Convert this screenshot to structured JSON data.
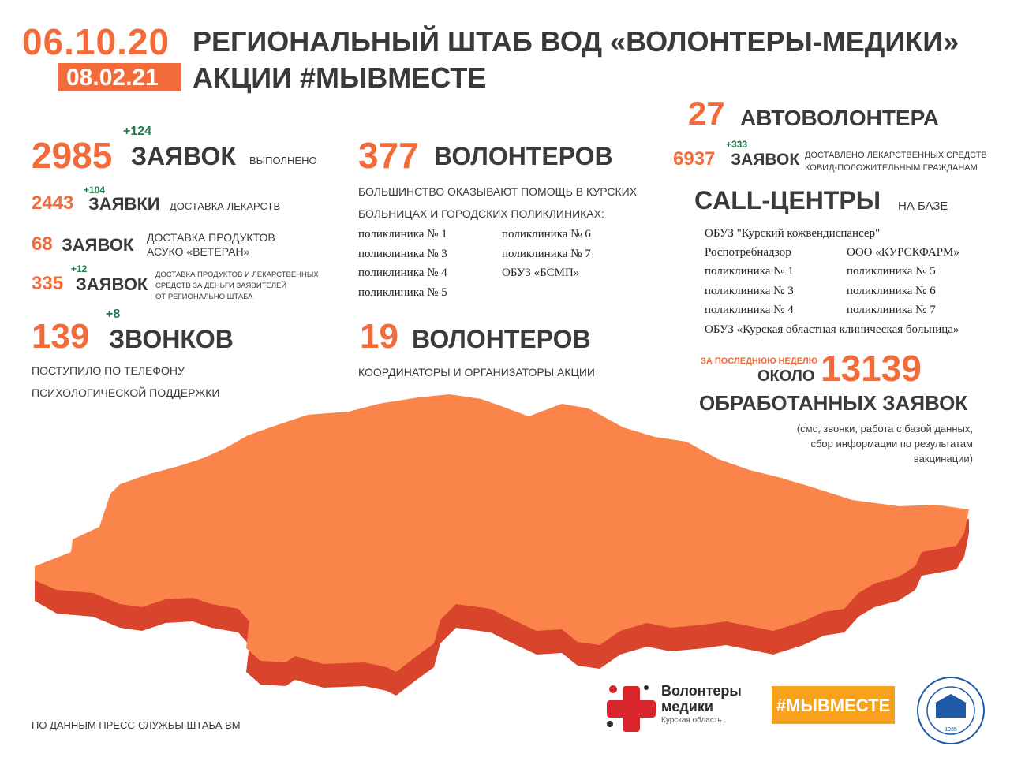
{
  "header": {
    "date_from": "06.10.20",
    "date_to": "08.02.21",
    "title_line1": "РЕГИОНАЛЬНЫЙ ШТАБ ВОД  «ВОЛОНТЕРЫ-МЕДИКИ»",
    "title_line2": "АКЦИИ #МЫВМЕСТЕ"
  },
  "left": {
    "requests": {
      "value": "2985",
      "delta": "+124",
      "word": "ЗАЯВОК",
      "note": "выполнено"
    },
    "medicine": {
      "value": "2443",
      "delta": "+104",
      "word": "ЗАЯВКИ",
      "note": "доставка лекарств"
    },
    "products": {
      "value": "68",
      "word": "ЗАЯВОК",
      "note_line1": "доставка продуктов",
      "note_line2": "АСУКО «Ветеран»"
    },
    "funded": {
      "value": "335",
      "delta": "+12",
      "word": "ЗАЯВОК",
      "note_line1": "доставка продуктов и лекарственных",
      "note_line2": "средств за деньги заявителей",
      "note_line3": "от регионально штаба"
    },
    "calls": {
      "value": "139",
      "delta": "+8",
      "word": "ЗВОНКОВ",
      "note_line1": "поступило по телефону",
      "note_line2": "психологической поддержки"
    }
  },
  "middle": {
    "volunteers": {
      "value": "377",
      "word": "ВОЛОНТЕРОВ"
    },
    "volunteers_note_line1": "большинство оказывают помощь в курских",
    "volunteers_note_line2": "больницах и городских поликлиниках:",
    "clinics_col1": [
      "поликлиника № 1",
      "поликлиника № 3",
      "поликлиника № 4",
      "поликлиника № 5"
    ],
    "clinics_col2": [
      "поликлиника № 6",
      "поликлиника № 7",
      "ОБУЗ «БСМП»"
    ],
    "coordinators": {
      "value": "19",
      "word": "ВОЛОНТЕРОВ",
      "note": "координаторы и организаторы Акции"
    }
  },
  "right": {
    "auto": {
      "value": "27",
      "word": "АВТОВОЛОНТЕРА"
    },
    "delivered": {
      "value": "6937",
      "delta": "+333",
      "word": "ЗАЯВОК",
      "note_line1": "доставлено лекарственных средств",
      "note_line2": "ковид-положительным гражданам"
    },
    "call_centers_title": "CALL-ЦЕНТРЫ",
    "call_centers_note": "на базе",
    "centers_top": "ОБУЗ \"Курский кожвендиспансер\"",
    "centers_col1": [
      "Роспотребнадзор",
      "поликлиника № 1",
      "поликлиника № 3",
      "поликлиника № 4"
    ],
    "centers_col2": [
      "ООО «КУРСКФАРМ»",
      "поликлиника № 5",
      "поликлиника № 6",
      "поликлиника № 7"
    ],
    "centers_bottom": "ОБУЗ «Курская областная клиническая больница»",
    "week_label": "за последнюю неделю",
    "about": "около",
    "processed_value": "13139",
    "processed_word": "ОБРАБОТАННЫХ ЗАЯВОК",
    "processed_note_line1": "(смс, звонки, работа с базой данных,",
    "processed_note_line2": "сбор информации по результатам",
    "processed_note_line3": "вакцинации)"
  },
  "footer": {
    "source": "по данным пресс-службы штаба ВМ",
    "logo_line1": "Волонтеры",
    "logo_line2": "медики",
    "logo_region": "Курская область",
    "hashtag": "#МЫВМЕСТЕ",
    "seal_year": "1935"
  },
  "colors": {
    "accent": "#f26b3a",
    "map_top": "#fb844a",
    "map_side": "#d9452c",
    "delta_green": "#1f7a4a",
    "hashtag_bg": "#f7a21a"
  }
}
